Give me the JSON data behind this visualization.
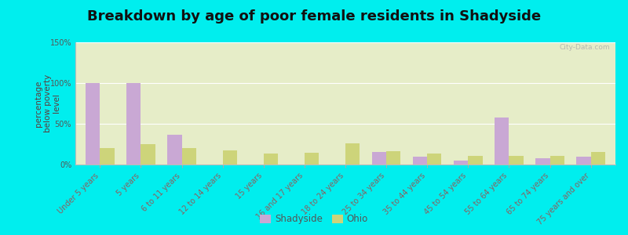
{
  "title": "Breakdown by age of poor female residents in Shadyside",
  "ylabel": "percentage\nbelow poverty\nlevel",
  "categories": [
    "Under 5 years",
    "5 years",
    "6 to 11 years",
    "12 to 14 years",
    "15 years",
    "16 and 17 years",
    "18 to 24 years",
    "25 to 34 years",
    "35 to 44 years",
    "45 to 54 years",
    "55 to 64 years",
    "65 to 74 years",
    "75 years and over"
  ],
  "shadyside": [
    100,
    100,
    37,
    0,
    0,
    0,
    0,
    15,
    10,
    5,
    58,
    8,
    10
  ],
  "ohio": [
    20,
    25,
    20,
    17,
    13,
    14,
    26,
    16,
    13,
    11,
    11,
    11,
    15
  ],
  "shadyside_color": "#c9a8d4",
  "ohio_color": "#cdd47a",
  "background_color": "#00eeee",
  "plot_bg_color": "#e6edc8",
  "ylim": [
    0,
    150
  ],
  "yticks": [
    0,
    50,
    100,
    150
  ],
  "ytick_labels": [
    "0%",
    "50%",
    "100%",
    "150%"
  ],
  "title_fontsize": 13,
  "axis_label_fontsize": 7.5,
  "tick_label_fontsize": 7,
  "legend_fontsize": 8.5,
  "watermark": "City-Data.com"
}
